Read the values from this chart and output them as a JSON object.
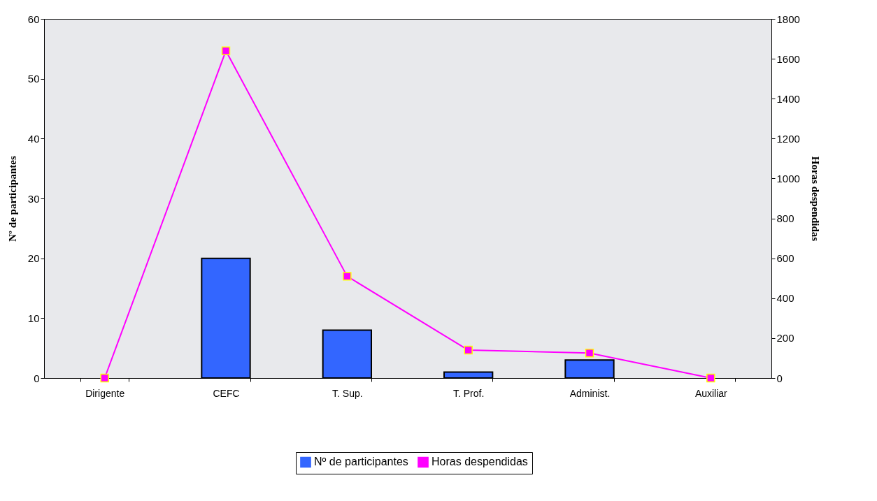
{
  "chart_data": {
    "type": "bar",
    "categories": [
      "Dirigente",
      "CEFC",
      "T. Sup.",
      "T. Prof.",
      "Administ.",
      "Auxiliar"
    ],
    "series": [
      {
        "name": "Nº de participantes",
        "color": "#3366ff",
        "values": [
          0,
          20,
          8,
          1,
          3,
          0
        ]
      },
      {
        "name": "Horas despendidas",
        "type": "line",
        "axis": "y2",
        "color": "#ff00ff",
        "marker": "square",
        "values": [
          0,
          1640,
          510,
          140,
          125,
          0
        ]
      }
    ],
    "ylabel": "Nº de participantes",
    "y2label": "Horas despendidas",
    "ylim": [
      0,
      60
    ],
    "yticks": [
      0,
      10,
      20,
      30,
      40,
      50,
      60
    ],
    "y2lim": [
      0,
      1800
    ],
    "y2ticks": [
      0,
      200,
      400,
      600,
      800,
      1000,
      1200,
      1400,
      1600,
      1800
    ],
    "grid": false,
    "legend": "bottom"
  }
}
